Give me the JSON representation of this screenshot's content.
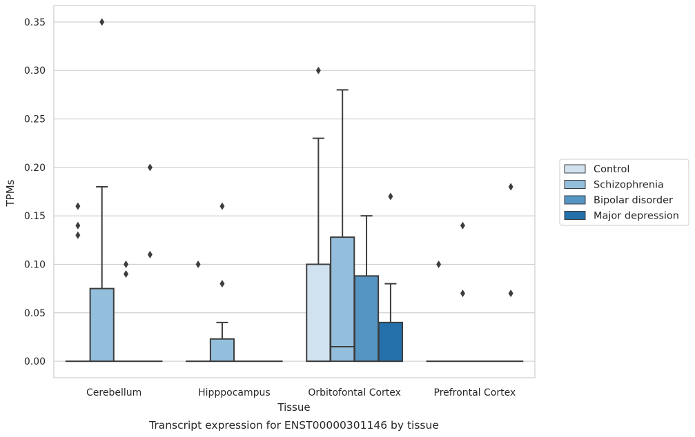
{
  "chart_data": {
    "type": "box",
    "xlabel": "Tissue",
    "ylabel": "TPMs",
    "caption": "Transcript expression for ENST00000301146 by tissue",
    "ylim": [
      -0.017,
      0.367
    ],
    "yticks": [
      "0.00",
      "0.05",
      "0.10",
      "0.15",
      "0.20",
      "0.25",
      "0.30",
      "0.35"
    ],
    "grid": "horizontal",
    "legend_position": "right",
    "categories": [
      "Cerebellum",
      "Hipppocampus",
      "Orbitofontal Cortex",
      "Prefrontal Cortex"
    ],
    "series": [
      {
        "name": "Control",
        "color": "#d0e2f0",
        "boxes": [
          {
            "q1": 0,
            "median": 0,
            "q3": 0,
            "whisker_low": 0,
            "whisker_high": 0,
            "outliers": [
              0.13,
              0.14,
              0.16
            ]
          },
          {
            "q1": 0,
            "median": 0,
            "q3": 0,
            "whisker_low": 0,
            "whisker_high": 0,
            "outliers": [
              0.1
            ]
          },
          {
            "q1": 0,
            "median": 0,
            "q3": 0.1,
            "whisker_low": 0,
            "whisker_high": 0.23,
            "outliers": [
              0.3
            ]
          },
          {
            "q1": 0,
            "median": 0,
            "q3": 0,
            "whisker_low": 0,
            "whisker_high": 0,
            "outliers": [
              0.1
            ]
          }
        ]
      },
      {
        "name": "Schizophrenia",
        "color": "#94bfdc",
        "boxes": [
          {
            "q1": 0,
            "median": 0,
            "q3": 0.075,
            "whisker_low": 0,
            "whisker_high": 0.18,
            "outliers": [
              0.35
            ]
          },
          {
            "q1": 0,
            "median": 0,
            "q3": 0.023,
            "whisker_low": 0,
            "whisker_high": 0.04,
            "outliers": [
              0.08,
              0.16
            ]
          },
          {
            "q1": 0,
            "median": 0.015,
            "q3": 0.128,
            "whisker_low": 0,
            "whisker_high": 0.28,
            "outliers": []
          },
          {
            "q1": 0,
            "median": 0,
            "q3": 0,
            "whisker_low": 0,
            "whisker_high": 0,
            "outliers": [
              0.07,
              0.14
            ]
          }
        ]
      },
      {
        "name": "Bipolar disorder",
        "color": "#5595c4",
        "boxes": [
          {
            "q1": 0,
            "median": 0,
            "q3": 0,
            "whisker_low": 0,
            "whisker_high": 0,
            "outliers": [
              0.09,
              0.1
            ]
          },
          {
            "q1": 0,
            "median": 0,
            "q3": 0,
            "whisker_low": 0,
            "whisker_high": 0,
            "outliers": []
          },
          {
            "q1": 0,
            "median": 0,
            "q3": 0.088,
            "whisker_low": 0,
            "whisker_high": 0.15,
            "outliers": []
          },
          {
            "q1": 0,
            "median": 0,
            "q3": 0,
            "whisker_low": 0,
            "whisker_high": 0,
            "outliers": []
          }
        ]
      },
      {
        "name": "Major depression",
        "color": "#2470aa",
        "boxes": [
          {
            "q1": 0,
            "median": 0,
            "q3": 0,
            "whisker_low": 0,
            "whisker_high": 0,
            "outliers": [
              0.11,
              0.2
            ]
          },
          {
            "q1": 0,
            "median": 0,
            "q3": 0,
            "whisker_low": 0,
            "whisker_high": 0,
            "outliers": []
          },
          {
            "q1": 0,
            "median": 0,
            "q3": 0.04,
            "whisker_low": 0,
            "whisker_high": 0.08,
            "outliers": [
              0.17
            ]
          },
          {
            "q1": 0,
            "median": 0,
            "q3": 0,
            "whisker_low": 0,
            "whisker_high": 0,
            "outliers": [
              0.07,
              0.18
            ]
          }
        ]
      }
    ]
  }
}
